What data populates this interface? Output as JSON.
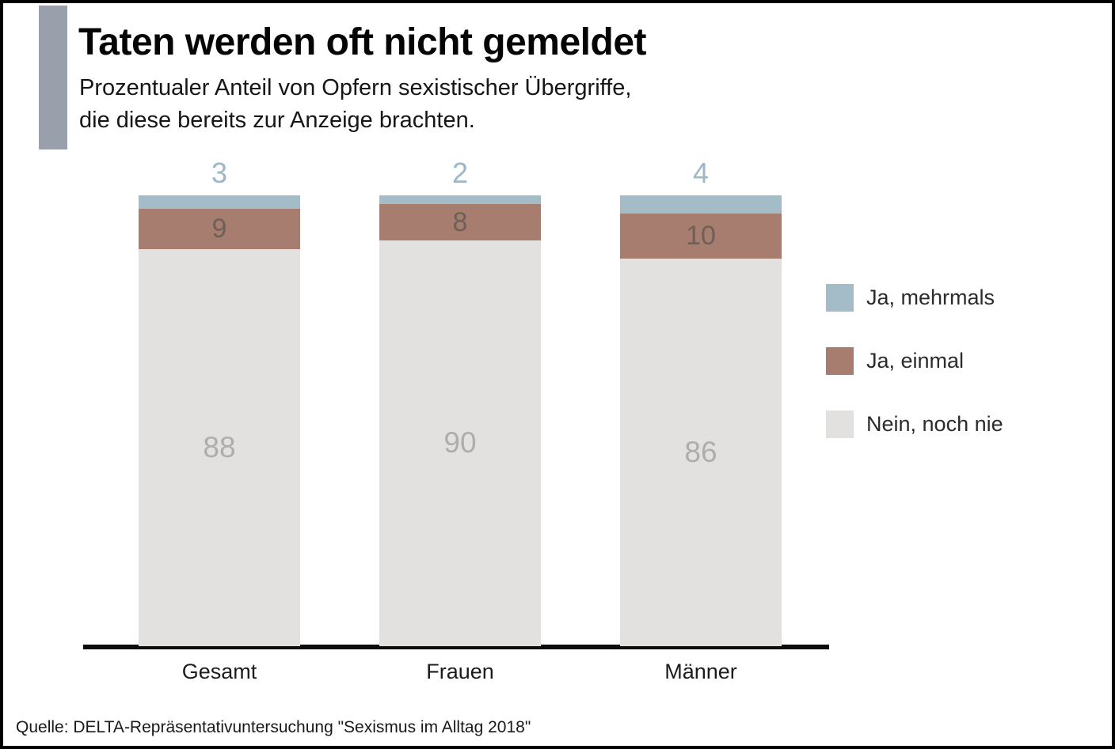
{
  "header": {
    "title": "Taten werden oft nicht gemeldet",
    "subtitle_line1": "Prozentualer Anteil von Opfern sexistischer Übergriffe,",
    "subtitle_line2": "die diese bereits zur Anzeige brachten."
  },
  "chart_data": {
    "type": "bar",
    "stacked": true,
    "title": "Taten werden oft nicht gemeldet",
    "subtitle": "Prozentualer Anteil von Opfern sexistischer Übergriffe, die diese bereits zur Anzeige brachten.",
    "categories": [
      "Gesamt",
      "Frauen",
      "Männer"
    ],
    "series": [
      {
        "name": "Ja, mehrmals",
        "color": "#a4bcc8",
        "values": [
          3,
          2,
          4
        ],
        "label_position": "above",
        "label_color": "#9db7c6"
      },
      {
        "name": "Ja, einmal",
        "color": "#a67d6f",
        "values": [
          9,
          8,
          10
        ],
        "label_position": "inside",
        "label_color": "#6e6058"
      },
      {
        "name": "Nein, noch nie",
        "color": "#e2e1e0",
        "values": [
          88,
          90,
          86
        ],
        "label_position": "inside",
        "label_color": "#aeadad"
      }
    ],
    "ylim": [
      0,
      100
    ],
    "xlabel": "",
    "ylabel": "",
    "grid": false,
    "legend_position": "right",
    "unit": "percent"
  },
  "colors": {
    "accent_bar": "#9aa0ab",
    "axis_line": "#0c0c0c",
    "frame_border": "#000000",
    "background": "#ffffff"
  },
  "source": "Quelle: DELTA-Repräsentativuntersuchung \"Sexismus im Alltag 2018\""
}
